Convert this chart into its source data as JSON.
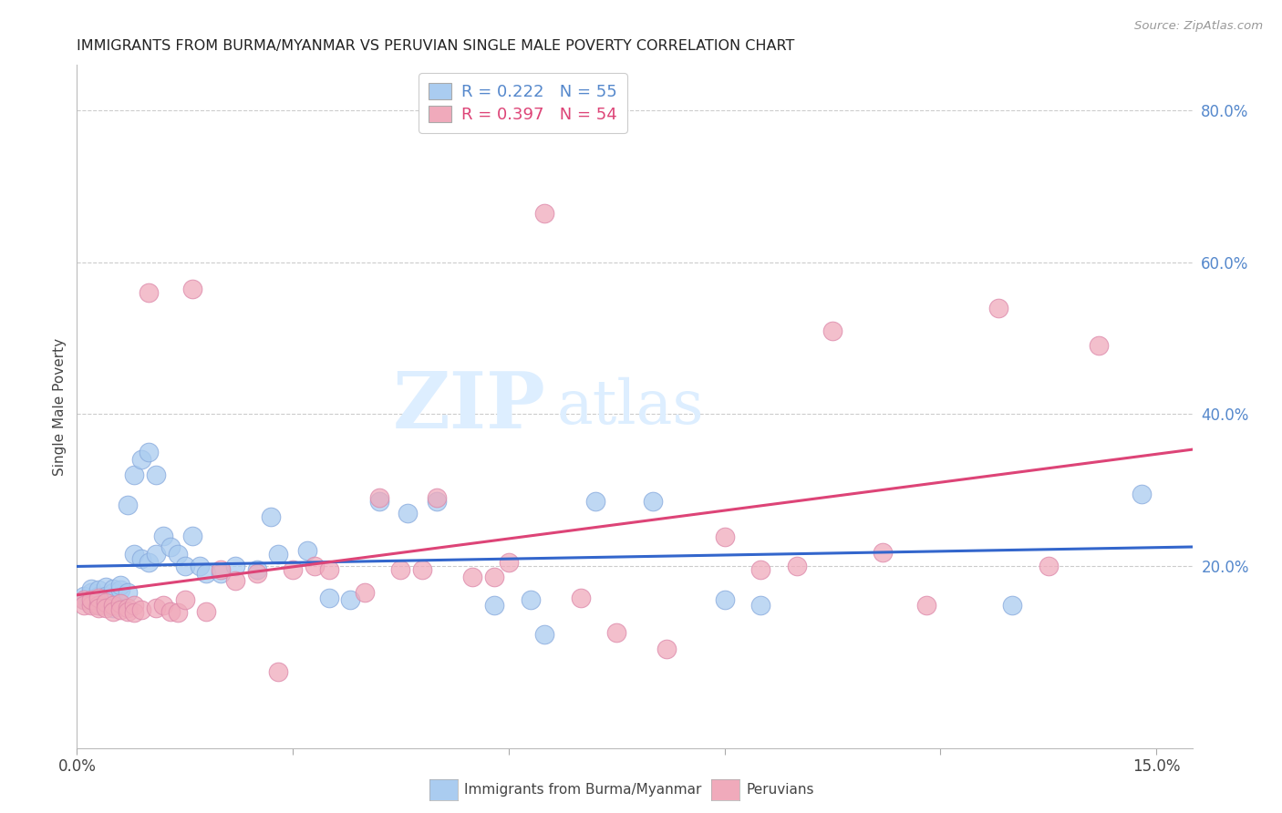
{
  "title": "IMMIGRANTS FROM BURMA/MYANMAR VS PERUVIAN SINGLE MALE POVERTY CORRELATION CHART",
  "source": "Source: ZipAtlas.com",
  "ylabel": "Single Male Poverty",
  "xlim": [
    0.0,
    0.155
  ],
  "ylim": [
    -0.04,
    0.86
  ],
  "yticks_right": [
    0.2,
    0.4,
    0.6,
    0.8
  ],
  "ytick_labels_right": [
    "20.0%",
    "40.0%",
    "60.0%",
    "80.0%"
  ],
  "xticks": [
    0.0,
    0.03,
    0.06,
    0.09,
    0.12,
    0.15
  ],
  "xtick_labels": [
    "0.0%",
    "",
    "",
    "",
    "",
    "15.0%"
  ],
  "series1_label": "Immigrants from Burma/Myanmar",
  "series1_R": "0.222",
  "series1_N": "55",
  "series1_color": "#aaccf0",
  "series1_edge_color": "#88aadd",
  "series1_trendline_color": "#3366cc",
  "series2_label": "Peruvians",
  "series2_R": "0.397",
  "series2_N": "54",
  "series2_color": "#f0aabb",
  "series2_edge_color": "#dd88aa",
  "series2_trendline_color": "#dd4477",
  "watermark_zip": "ZIP",
  "watermark_atlas": "atlas",
  "watermark_color": "#ddeeff",
  "blue_scatter_x": [
    0.001,
    0.001,
    0.002,
    0.002,
    0.002,
    0.003,
    0.003,
    0.003,
    0.003,
    0.004,
    0.004,
    0.004,
    0.005,
    0.005,
    0.005,
    0.005,
    0.006,
    0.006,
    0.007,
    0.007,
    0.008,
    0.008,
    0.009,
    0.009,
    0.01,
    0.01,
    0.011,
    0.011,
    0.012,
    0.013,
    0.014,
    0.015,
    0.016,
    0.017,
    0.018,
    0.02,
    0.022,
    0.025,
    0.027,
    0.028,
    0.032,
    0.035,
    0.038,
    0.042,
    0.046,
    0.05,
    0.058,
    0.063,
    0.065,
    0.072,
    0.08,
    0.09,
    0.095,
    0.13,
    0.148
  ],
  "blue_scatter_y": [
    0.16,
    0.155,
    0.165,
    0.17,
    0.15,
    0.16,
    0.168,
    0.155,
    0.148,
    0.172,
    0.16,
    0.155,
    0.158,
    0.165,
    0.17,
    0.145,
    0.168,
    0.175,
    0.165,
    0.28,
    0.215,
    0.32,
    0.34,
    0.21,
    0.35,
    0.205,
    0.32,
    0.215,
    0.24,
    0.225,
    0.215,
    0.2,
    0.24,
    0.2,
    0.19,
    0.19,
    0.2,
    0.195,
    0.265,
    0.215,
    0.22,
    0.158,
    0.155,
    0.285,
    0.27,
    0.285,
    0.148,
    0.155,
    0.11,
    0.285,
    0.285,
    0.155,
    0.148,
    0.148,
    0.295
  ],
  "pink_scatter_x": [
    0.001,
    0.001,
    0.002,
    0.002,
    0.003,
    0.003,
    0.003,
    0.004,
    0.004,
    0.005,
    0.005,
    0.006,
    0.006,
    0.007,
    0.007,
    0.008,
    0.008,
    0.009,
    0.01,
    0.011,
    0.012,
    0.013,
    0.014,
    0.015,
    0.016,
    0.018,
    0.02,
    0.022,
    0.025,
    0.028,
    0.03,
    0.033,
    0.035,
    0.04,
    0.042,
    0.045,
    0.048,
    0.05,
    0.055,
    0.058,
    0.06,
    0.065,
    0.07,
    0.075,
    0.082,
    0.09,
    0.095,
    0.1,
    0.105,
    0.112,
    0.118,
    0.128,
    0.135,
    0.142
  ],
  "pink_scatter_y": [
    0.155,
    0.148,
    0.148,
    0.155,
    0.148,
    0.158,
    0.145,
    0.152,
    0.145,
    0.148,
    0.14,
    0.15,
    0.142,
    0.145,
    0.14,
    0.148,
    0.138,
    0.142,
    0.56,
    0.145,
    0.148,
    0.14,
    0.138,
    0.155,
    0.565,
    0.14,
    0.195,
    0.18,
    0.19,
    0.06,
    0.195,
    0.2,
    0.195,
    0.165,
    0.29,
    0.195,
    0.195,
    0.29,
    0.185,
    0.185,
    0.205,
    0.665,
    0.158,
    0.112,
    0.09,
    0.238,
    0.195,
    0.2,
    0.51,
    0.218,
    0.148,
    0.54,
    0.2,
    0.49
  ]
}
